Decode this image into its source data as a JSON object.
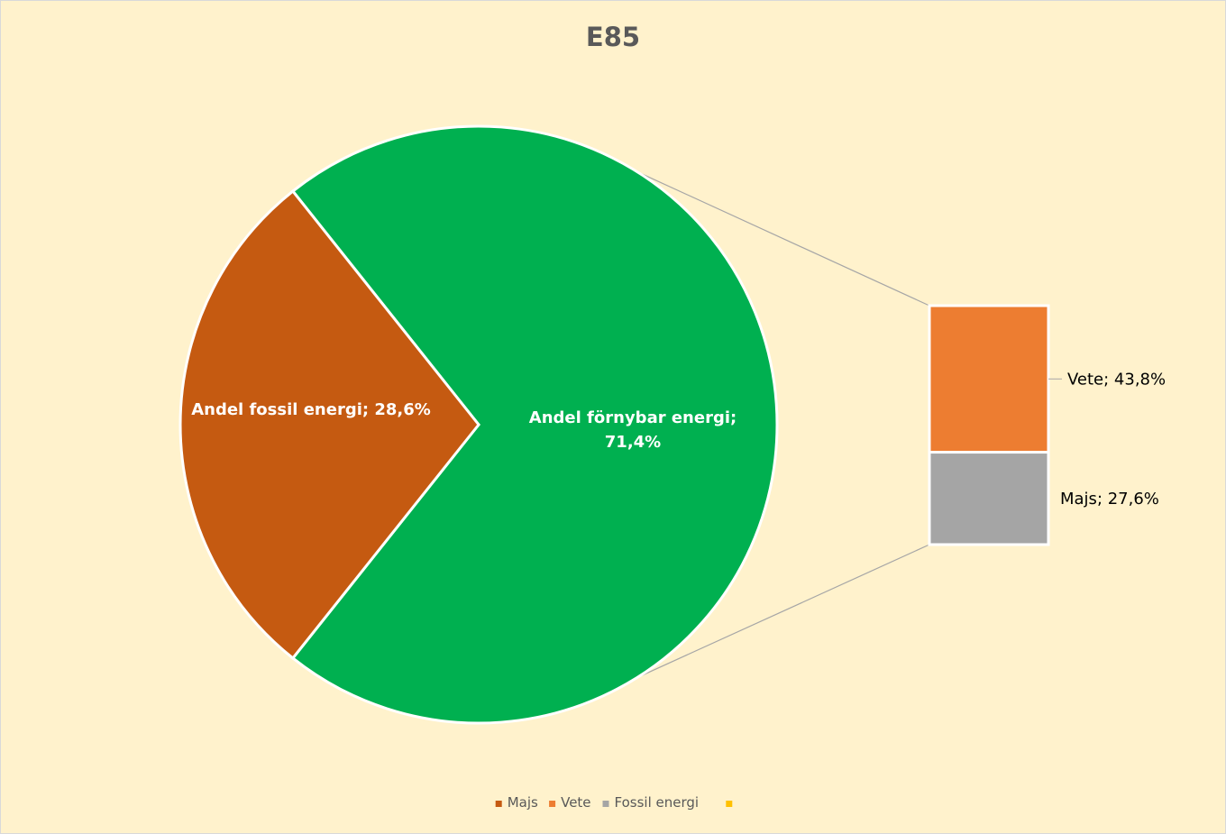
{
  "chart_data": {
    "type": "bar-of-pie",
    "title": "E85",
    "pie": {
      "slices": [
        {
          "name": "Andel fossil energi",
          "value": 28.6,
          "label": "Andel fossil energi; 28,6%",
          "color": "#c55a11"
        },
        {
          "name": "Andel förnybar energi",
          "value": 71.4,
          "label": [
            "Andel förnybar energi;",
            "71,4%"
          ],
          "color": "#00b050"
        }
      ]
    },
    "bar": {
      "segments": [
        {
          "name": "Vete",
          "value": 43.8,
          "label": "Vete; 43,8%",
          "color": "#ed7d31"
        },
        {
          "name": "Majs",
          "value": 27.6,
          "label": "Majs; 27,6%",
          "color": "#a5a5a5"
        }
      ]
    },
    "legend": {
      "placement": "bottom",
      "entries": [
        {
          "label": "Majs",
          "color": "#c55a11"
        },
        {
          "label": "Vete",
          "color": "#ed7d31"
        },
        {
          "label": "Fossil energi",
          "color": "#a5a5a5"
        },
        {
          "label": "",
          "color": "#ffc000"
        }
      ]
    },
    "colors": {
      "background": "#fff2cc",
      "connector": "#a6a6a6",
      "title": "#595959"
    }
  }
}
